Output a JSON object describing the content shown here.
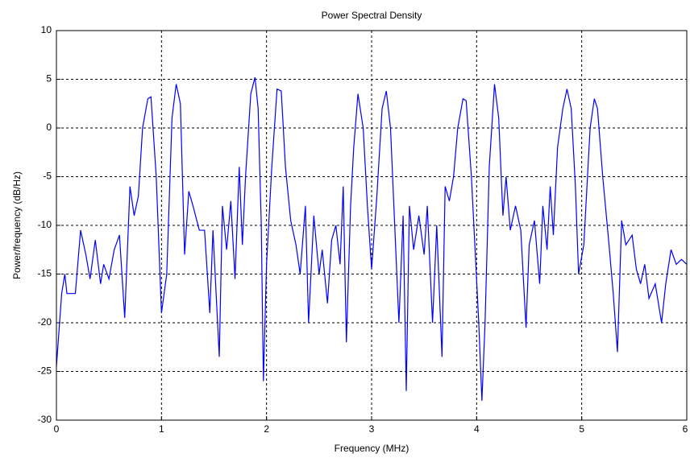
{
  "chart_data": {
    "type": "line",
    "title": "Power Spectral Density",
    "x_label": "Frequency (MHz)",
    "y_label": "Power/frequency (dB/Hz)",
    "color": "#0000ff",
    "grid": true,
    "xlim": [
      0,
      6
    ],
    "ylim": [
      -30,
      10
    ],
    "xticks": [
      0,
      1,
      2,
      3,
      4,
      5,
      6
    ],
    "yticks": [
      -30,
      -25,
      -20,
      -15,
      -10,
      -5,
      0,
      5,
      10
    ],
    "x": [
      0,
      0.05,
      0.08,
      0.1,
      0.18,
      0.23,
      0.28,
      0.32,
      0.37,
      0.42,
      0.45,
      0.5,
      0.55,
      0.6,
      0.65,
      0.7,
      0.74,
      0.78,
      0.82,
      0.87,
      0.9,
      0.95,
      1.0,
      1.05,
      1.1,
      1.14,
      1.18,
      1.22,
      1.26,
      1.3,
      1.36,
      1.41,
      1.46,
      1.49,
      1.55,
      1.58,
      1.62,
      1.66,
      1.7,
      1.74,
      1.77,
      1.8,
      1.85,
      1.89,
      1.92,
      1.95,
      1.97,
      2.0,
      2.05,
      2.1,
      2.14,
      2.18,
      2.23,
      2.28,
      2.32,
      2.37,
      2.4,
      2.45,
      2.5,
      2.53,
      2.58,
      2.62,
      2.66,
      2.7,
      2.73,
      2.76,
      2.8,
      2.83,
      2.87,
      2.92,
      2.96,
      3.0,
      3.05,
      3.1,
      3.14,
      3.18,
      3.22,
      3.26,
      3.3,
      3.33,
      3.36,
      3.4,
      3.45,
      3.5,
      3.53,
      3.58,
      3.62,
      3.67,
      3.7,
      3.74,
      3.78,
      3.82,
      3.87,
      3.9,
      3.95,
      4.02,
      4.05,
      4.08,
      4.12,
      4.17,
      4.21,
      4.25,
      4.28,
      4.32,
      4.37,
      4.42,
      4.47,
      4.5,
      4.55,
      4.6,
      4.63,
      4.67,
      4.7,
      4.73,
      4.77,
      4.82,
      4.86,
      4.9,
      4.94,
      4.97,
      5.02,
      5.08,
      5.12,
      5.15,
      5.2,
      5.26,
      5.3,
      5.34,
      5.38,
      5.42,
      5.48,
      5.52,
      5.56,
      5.6,
      5.64,
      5.7,
      5.76,
      5.8,
      5.85,
      5.9,
      5.95,
      6.0
    ],
    "values": [
      -24.5,
      -17,
      -15,
      -17,
      -17,
      -10.5,
      -13,
      -15.5,
      -11.5,
      -16,
      -14,
      -15.5,
      -12.5,
      -11,
      -19.5,
      -6,
      -9,
      -7,
      0,
      3,
      3.2,
      -5,
      -19,
      -15,
      1,
      4.5,
      2.5,
      -13,
      -6.5,
      -8,
      -10.5,
      -10.5,
      -19,
      -10.5,
      -23.5,
      -8,
      -12.5,
      -7.5,
      -15.5,
      -4,
      -12,
      -5,
      3.5,
      5.2,
      2,
      -10,
      -26,
      -14,
      -4,
      4,
      3.8,
      -4,
      -9.5,
      -12,
      -15,
      -8,
      -20,
      -9,
      -15,
      -12.5,
      -18,
      -11.5,
      -10,
      -14,
      -6,
      -22,
      -8,
      -2,
      3.5,
      0,
      -8,
      -14.5,
      -7,
      2,
      3.8,
      0,
      -10,
      -20,
      -9,
      -27,
      -8,
      -12.5,
      -9,
      -13,
      -8,
      -20,
      -10,
      -23.5,
      -6,
      -7.5,
      -5,
      0,
      3,
      2.8,
      -5,
      -20,
      -28,
      -20,
      -4,
      4.5,
      1,
      -9,
      -5,
      -10.5,
      -8,
      -10.5,
      -20.5,
      -12,
      -9.5,
      -16,
      -8,
      -12.5,
      -6,
      -11,
      -2,
      2,
      4,
      2,
      -6,
      -15,
      -12,
      0,
      3,
      2,
      -5,
      -12,
      -17,
      -23,
      -9.5,
      -12,
      -11,
      -14.5,
      -16,
      -14,
      -17.5,
      -16,
      -20,
      -16,
      -12.5,
      -14,
      -13.5,
      -14
    ]
  }
}
